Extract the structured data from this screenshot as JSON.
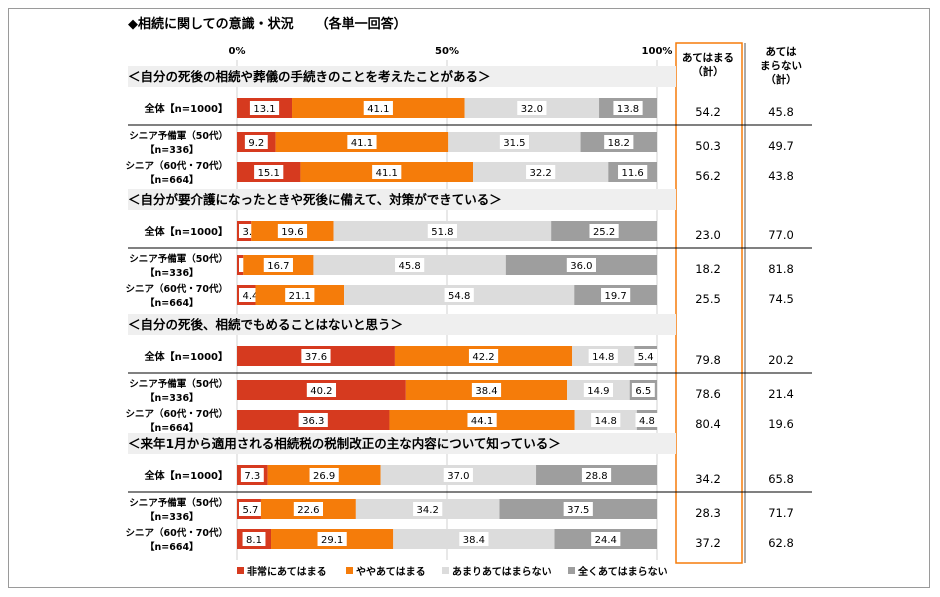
{
  "chart_data": {
    "type": "bar",
    "orientation": "horizontal",
    "stacked": true,
    "percent_scale": true,
    "title": "◆相続に関しての意識・状況",
    "subtitle": "（各単一回答）",
    "x_ticks": [
      "0%",
      "50%",
      "100%"
    ],
    "xlim": [
      0,
      100
    ],
    "col_labels": {
      "apply": "あてはまる\n（計）",
      "not_apply": "あては\nまらない\n（計）"
    },
    "legend": [
      {
        "name": "非常にあてはまる",
        "color": "#d63a1f"
      },
      {
        "name": "ややあてはまる",
        "color": "#f57c0a"
      },
      {
        "name": "あまりあてはまらない",
        "color": "#dcdcdc"
      },
      {
        "name": "全くあてはまらない",
        "color": "#9e9e9e"
      }
    ],
    "sections": [
      {
        "header": "＜自分の死後の相続や葬儀の手続きのことを考えたことがある＞",
        "rows": [
          {
            "label": "全体【n=1000】",
            "values": [
              13.1,
              41.1,
              32.0,
              13.8
            ],
            "apply": "54.2",
            "not_apply": "45.8"
          },
          {
            "label": "シニア予備軍（50代）\n【n=336】",
            "values": [
              9.2,
              41.1,
              31.5,
              18.2
            ],
            "apply": "50.3",
            "not_apply": "49.7"
          },
          {
            "label": "シニア（60代・70代）\n【n=664】",
            "values": [
              15.1,
              41.1,
              32.2,
              11.6
            ],
            "apply": "56.2",
            "not_apply": "43.8"
          }
        ]
      },
      {
        "header": "＜自分が要介護になったときや死後に備えて、対策ができている＞",
        "rows": [
          {
            "label": "全体【n=1000】",
            "values": [
              3.4,
              19.6,
              51.8,
              25.2
            ],
            "apply": "23.0",
            "not_apply": "77.0"
          },
          {
            "label": "シニア予備軍（50代）\n【n=336】",
            "values": [
              1.5,
              16.7,
              45.8,
              36.0
            ],
            "apply": "18.2",
            "not_apply": "81.8"
          },
          {
            "label": "シニア（60代・70代）\n【n=664】",
            "values": [
              4.4,
              21.1,
              54.8,
              19.7
            ],
            "apply": "25.5",
            "not_apply": "74.5"
          }
        ]
      },
      {
        "header": "＜自分の死後、相続でもめることはないと思う＞",
        "rows": [
          {
            "label": "全体【n=1000】",
            "values": [
              37.6,
              42.2,
              14.8,
              5.4
            ],
            "apply": "79.8",
            "not_apply": "20.2"
          },
          {
            "label": "シニア予備軍（50代）\n【n=336】",
            "values": [
              40.2,
              38.4,
              14.9,
              6.5
            ],
            "apply": "78.6",
            "not_apply": "21.4"
          },
          {
            "label": "シニア（60代・70代）\n【n=664】",
            "values": [
              36.3,
              44.1,
              14.8,
              4.8
            ],
            "apply": "80.4",
            "not_apply": "19.6"
          }
        ]
      },
      {
        "header": "＜来年1月から適用される相続税の税制改正の主な内容について知っている＞",
        "rows": [
          {
            "label": "全体【n=1000】",
            "values": [
              7.3,
              26.9,
              37.0,
              28.8
            ],
            "apply": "34.2",
            "not_apply": "65.8"
          },
          {
            "label": "シニア予備軍（50代）\n【n=336】",
            "values": [
              5.7,
              22.6,
              34.2,
              37.5
            ],
            "apply": "28.3",
            "not_apply": "71.7"
          },
          {
            "label": "シニア（60代・70代）\n【n=664】",
            "values": [
              8.1,
              29.1,
              38.4,
              24.4
            ],
            "apply": "37.2",
            "not_apply": "62.8"
          }
        ]
      }
    ]
  }
}
